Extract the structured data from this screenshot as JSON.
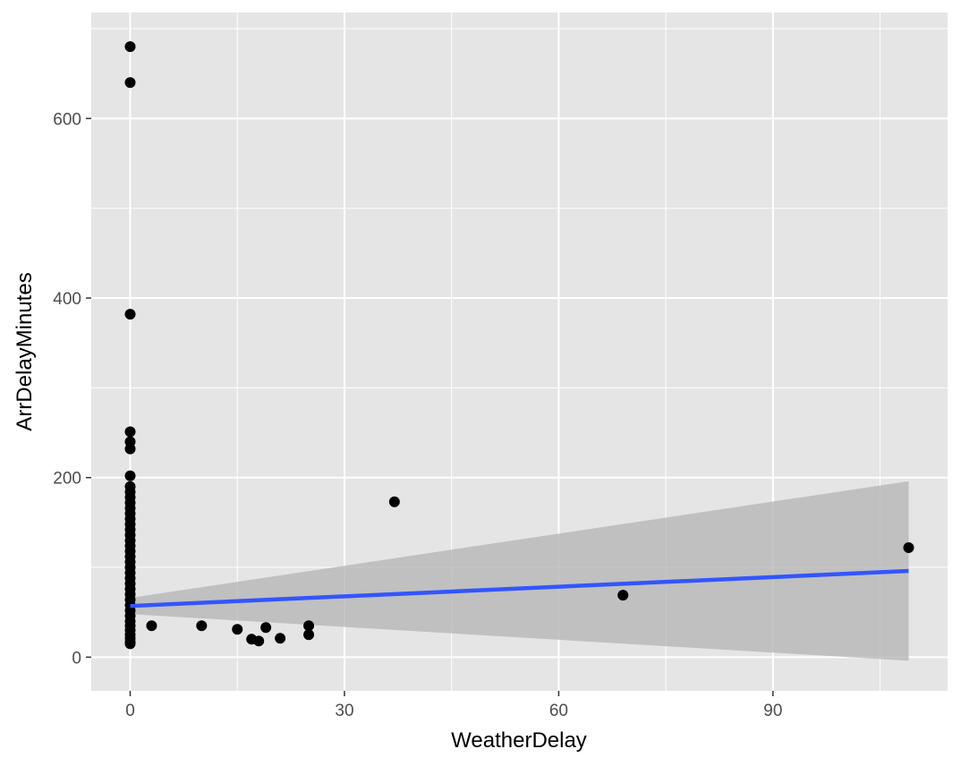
{
  "chart_data": {
    "type": "scatter",
    "title": "",
    "xlabel": "WeatherDelay",
    "ylabel": "ArrDelayMinutes",
    "xlim": [
      -5.45,
      114.45
    ],
    "ylim": [
      -37.5,
      718
    ],
    "x_ticks": [
      0,
      30,
      60,
      90
    ],
    "y_ticks": [
      0,
      200,
      400,
      600
    ],
    "x_minor": [
      15,
      45,
      75,
      105
    ],
    "y_minor": [
      100,
      300,
      500,
      700
    ],
    "grid": true,
    "legend": "none",
    "colors": {
      "panel": "#e5e5e5",
      "grid": "#ffffff",
      "point": "#000000",
      "line": "#3355ff",
      "ribbon": "#b3b3b3"
    },
    "points": [
      {
        "x": 0,
        "y": 680
      },
      {
        "x": 0,
        "y": 640
      },
      {
        "x": 0,
        "y": 382
      },
      {
        "x": 0,
        "y": 251
      },
      {
        "x": 0,
        "y": 240
      },
      {
        "x": 0,
        "y": 232
      },
      {
        "x": 0,
        "y": 202
      },
      {
        "x": 0,
        "y": 190
      },
      {
        "x": 0,
        "y": 184
      },
      {
        "x": 0,
        "y": 178
      },
      {
        "x": 0,
        "y": 172
      },
      {
        "x": 0,
        "y": 166
      },
      {
        "x": 0,
        "y": 160
      },
      {
        "x": 0,
        "y": 154
      },
      {
        "x": 0,
        "y": 148
      },
      {
        "x": 0,
        "y": 142
      },
      {
        "x": 0,
        "y": 136
      },
      {
        "x": 0,
        "y": 130
      },
      {
        "x": 0,
        "y": 124
      },
      {
        "x": 0,
        "y": 118
      },
      {
        "x": 0,
        "y": 112
      },
      {
        "x": 0,
        "y": 106
      },
      {
        "x": 0,
        "y": 100
      },
      {
        "x": 0,
        "y": 94
      },
      {
        "x": 0,
        "y": 88
      },
      {
        "x": 0,
        "y": 82
      },
      {
        "x": 0,
        "y": 76
      },
      {
        "x": 0,
        "y": 70
      },
      {
        "x": 0,
        "y": 64
      },
      {
        "x": 0,
        "y": 58
      },
      {
        "x": 0,
        "y": 52
      },
      {
        "x": 0,
        "y": 46
      },
      {
        "x": 0,
        "y": 40
      },
      {
        "x": 0,
        "y": 35
      },
      {
        "x": 0,
        "y": 30
      },
      {
        "x": 0,
        "y": 25
      },
      {
        "x": 0,
        "y": 21
      },
      {
        "x": 0,
        "y": 17
      },
      {
        "x": 0,
        "y": 15
      },
      {
        "x": 3,
        "y": 35
      },
      {
        "x": 10,
        "y": 35
      },
      {
        "x": 15,
        "y": 31
      },
      {
        "x": 17,
        "y": 20
      },
      {
        "x": 18,
        "y": 18
      },
      {
        "x": 19,
        "y": 33
      },
      {
        "x": 21,
        "y": 21
      },
      {
        "x": 25,
        "y": 35
      },
      {
        "x": 25,
        "y": 25
      },
      {
        "x": 37,
        "y": 173
      },
      {
        "x": 69,
        "y": 69
      },
      {
        "x": 109,
        "y": 122
      }
    ],
    "smooth": {
      "x": [
        0,
        109
      ],
      "fit": [
        57,
        96
      ],
      "lower": [
        48,
        -4
      ],
      "upper": [
        66,
        196
      ]
    }
  }
}
